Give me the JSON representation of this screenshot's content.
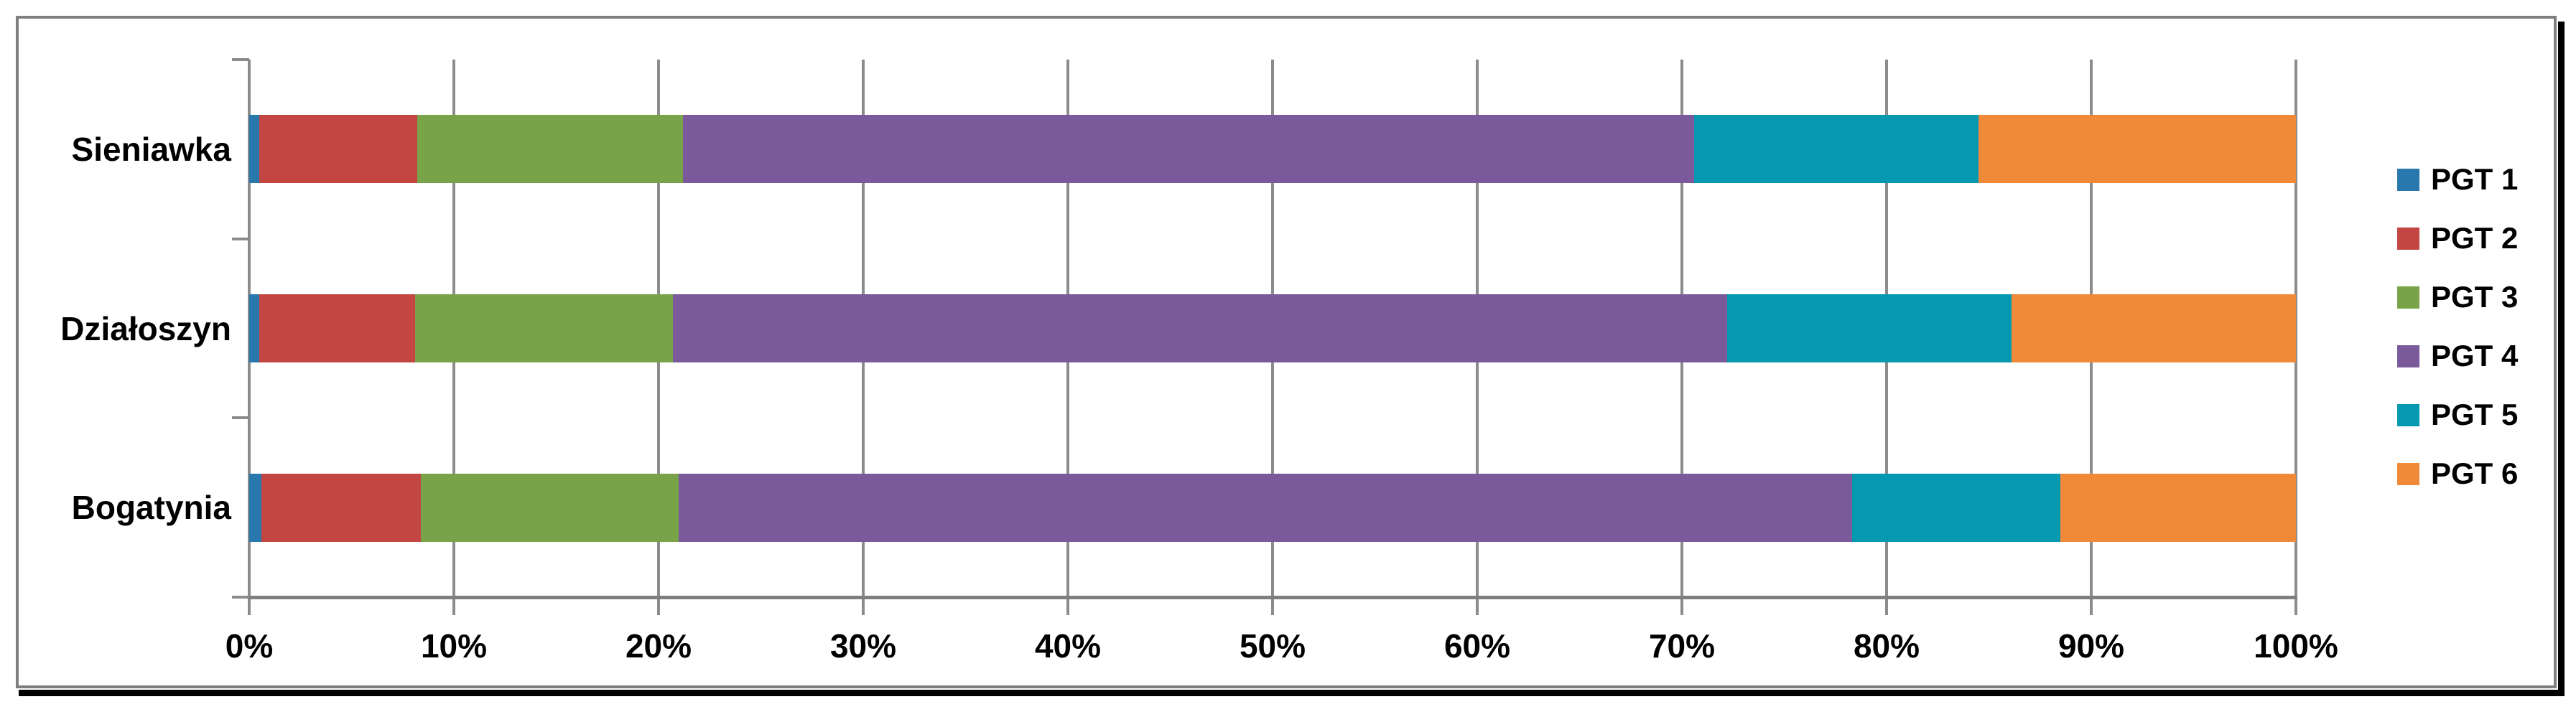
{
  "chart_data": {
    "type": "bar",
    "variant": "horizontal-stacked-100percent",
    "title": "",
    "xlabel": "",
    "ylabel": "",
    "categories": [
      "Sieniawka",
      "Działoszyn",
      "Bogatynia"
    ],
    "series": [
      {
        "name": "PGT 1",
        "color": "#2878ae",
        "values": [
          0.5,
          0.5,
          0.6
        ]
      },
      {
        "name": "PGT 2",
        "color": "#c34642",
        "values": [
          7.7,
          7.6,
          7.8
        ]
      },
      {
        "name": "PGT 3",
        "color": "#79a348",
        "values": [
          13.0,
          12.6,
          12.6
        ]
      },
      {
        "name": "PGT 4",
        "color": "#7a5a9b",
        "values": [
          49.4,
          51.5,
          57.3
        ]
      },
      {
        "name": "PGT 5",
        "color": "#0598b1",
        "values": [
          13.9,
          13.9,
          10.2
        ]
      },
      {
        "name": "PGT 6",
        "color": "#f18a38",
        "values": [
          15.5,
          13.9,
          11.5
        ]
      }
    ],
    "x_ticks": [
      "0%",
      "10%",
      "20%",
      "30%",
      "40%",
      "50%",
      "60%",
      "70%",
      "80%",
      "90%",
      "100%"
    ],
    "xlim": [
      0,
      100
    ],
    "grid": true,
    "legend_position": "right",
    "grid_color": "#8c8c8c",
    "axis_color": "#7f7f7f",
    "frame_border_color": "#7f7f7f",
    "frame_shadow_color": "#000000"
  }
}
